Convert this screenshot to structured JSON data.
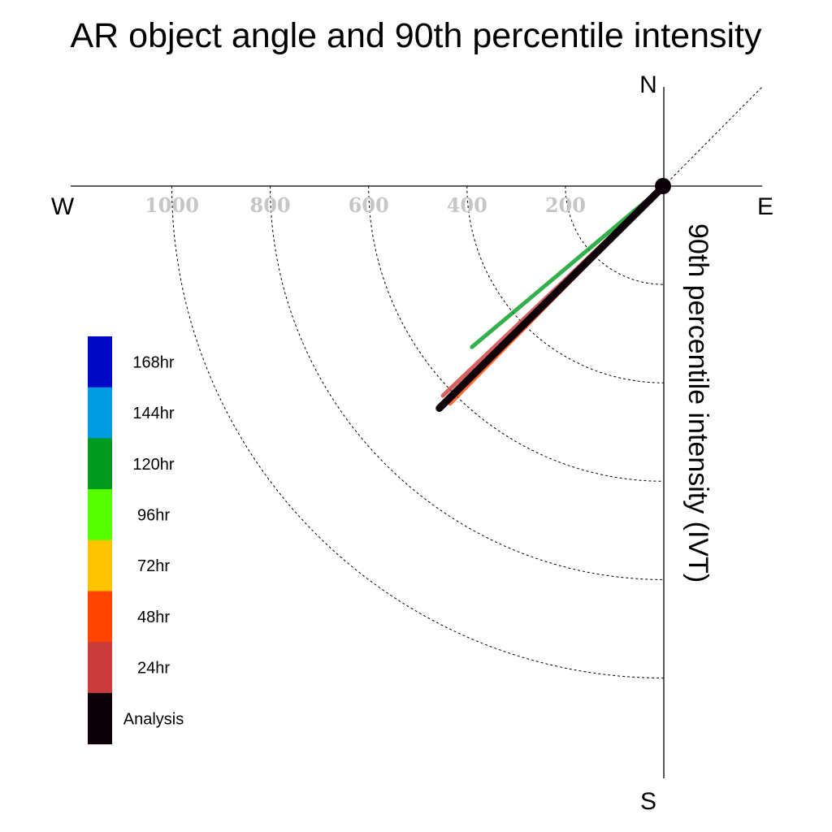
{
  "chart_data": {
    "type": "polar-vector",
    "title": "AR object angle and 90th percentile intensity",
    "ylabel": "90th percentile intensity (IVT)",
    "compass": {
      "north": "N",
      "south": "S",
      "east": "E",
      "west": "W"
    },
    "radial_ticks": [
      "1000",
      "800",
      "600",
      "400",
      "200"
    ],
    "radial_values": [
      1000,
      800,
      600,
      400,
      200
    ],
    "rlim": [
      0,
      1200
    ],
    "grid": true,
    "angle_unit": "degrees clockwise from north",
    "series": [
      {
        "name": "24hr",
        "color": "#cc3b3b",
        "angle": 226.5,
        "intensity": 619
      },
      {
        "name": "48hr",
        "color": "#ff4500",
        "angle": 224.5,
        "intensity": 620
      },
      {
        "name": "72hr",
        "color": "#ffc400",
        "angle": 224.8,
        "intensity": 565
      },
      {
        "name": "96hr",
        "color": "#55ff00",
        "angle": 225.5,
        "intensity": 533
      },
      {
        "name": "120hr",
        "color": "#009b1f",
        "angle": 230.0,
        "intensity": 509
      },
      {
        "name": "Analysis",
        "color": "#0e0008",
        "angle": 225.3,
        "intensity": 642
      }
    ],
    "legend": {
      "placement": "left",
      "entries": [
        {
          "label": "168hr",
          "color": "#0008c6"
        },
        {
          "label": "144hr",
          "color": "#009ae0"
        },
        {
          "label": "120hr",
          "color": "#009b1f"
        },
        {
          "label": "96hr",
          "color": "#55ff00"
        },
        {
          "label": "72hr",
          "color": "#ffc400"
        },
        {
          "label": "48hr",
          "color": "#ff4500"
        },
        {
          "label": "24hr",
          "color": "#cc3b3b"
        },
        {
          "label": "Analysis",
          "color": "#0e0008"
        }
      ]
    }
  }
}
